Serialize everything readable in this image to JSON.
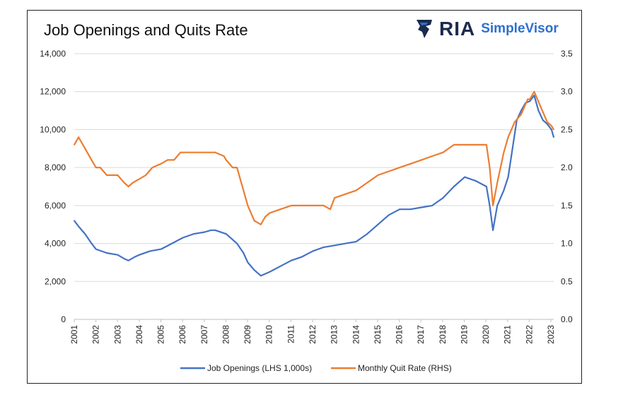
{
  "chart_data": {
    "type": "line",
    "title": "Job Openings and Quits Rate",
    "brand": {
      "mark": "RIA",
      "name": "SimpleVisor"
    },
    "x_labels": [
      "2001",
      "2002",
      "2003",
      "2004",
      "2005",
      "2006",
      "2007",
      "2008",
      "2009",
      "2010",
      "2011",
      "2012",
      "2013",
      "2014",
      "2015",
      "2016",
      "2017",
      "2018",
      "2019",
      "2020",
      "2021",
      "2022",
      "2023"
    ],
    "xlim": [
      2001.0,
      2023.1
    ],
    "y_left": {
      "ticks": [
        "0",
        "2,000",
        "4,000",
        "6,000",
        "8,000",
        "10,000",
        "12,000",
        "14,000"
      ],
      "ylim": [
        0,
        14000
      ]
    },
    "y_right": {
      "ticks": [
        "0.0",
        "0.5",
        "1.0",
        "1.5",
        "2.0",
        "2.5",
        "3.0",
        "3.5"
      ],
      "ylim": [
        0,
        3.5
      ]
    },
    "grid": true,
    "legend_position": "bottom",
    "series": [
      {
        "name": "Job Openings (LHS 1,000s)",
        "axis": "left",
        "color": "#4472C4",
        "x": [
          2001.0,
          2001.2,
          2001.5,
          2001.8,
          2002.0,
          2002.5,
          2003.0,
          2003.3,
          2003.5,
          2003.8,
          2004.0,
          2004.5,
          2005.0,
          2005.5,
          2006.0,
          2006.5,
          2007.0,
          2007.3,
          2007.5,
          2008.0,
          2008.5,
          2008.8,
          2009.0,
          2009.3,
          2009.6,
          2010.0,
          2010.5,
          2011.0,
          2011.5,
          2012.0,
          2012.5,
          2013.0,
          2013.5,
          2014.0,
          2014.5,
          2015.0,
          2015.5,
          2016.0,
          2016.5,
          2017.0,
          2017.5,
          2018.0,
          2018.5,
          2019.0,
          2019.5,
          2020.0,
          2020.15,
          2020.3,
          2020.5,
          2020.8,
          2021.0,
          2021.2,
          2021.4,
          2021.6,
          2021.8,
          2022.0,
          2022.2,
          2022.4,
          2022.6,
          2022.8,
          2023.0,
          2023.1
        ],
        "y": [
          5200,
          4900,
          4500,
          4000,
          3700,
          3500,
          3400,
          3200,
          3100,
          3300,
          3400,
          3600,
          3700,
          4000,
          4300,
          4500,
          4600,
          4700,
          4700,
          4500,
          4000,
          3500,
          3000,
          2600,
          2300,
          2500,
          2800,
          3100,
          3300,
          3600,
          3800,
          3900,
          4000,
          4100,
          4500,
          5000,
          5500,
          5800,
          5800,
          5900,
          6000,
          6400,
          7000,
          7500,
          7300,
          7000,
          6000,
          4700,
          6000,
          6800,
          7500,
          9000,
          10500,
          11000,
          11400,
          11500,
          11800,
          11000,
          10500,
          10300,
          10000,
          9600
        ]
      },
      {
        "name": "Monthly Quit Rate (RHS)",
        "axis": "right",
        "color": "#ED7D31",
        "x": [
          2001.0,
          2001.2,
          2001.4,
          2001.6,
          2001.8,
          2002.0,
          2002.2,
          2002.5,
          2002.8,
          2003.0,
          2003.3,
          2003.5,
          2003.7,
          2004.0,
          2004.3,
          2004.6,
          2005.0,
          2005.3,
          2005.6,
          2005.9,
          2006.0,
          2006.5,
          2007.0,
          2007.5,
          2007.9,
          2008.0,
          2008.3,
          2008.5,
          2008.7,
          2009.0,
          2009.3,
          2009.6,
          2009.8,
          2010.0,
          2010.5,
          2011.0,
          2011.5,
          2012.0,
          2012.5,
          2012.8,
          2013.0,
          2013.5,
          2014.0,
          2014.5,
          2015.0,
          2015.5,
          2016.0,
          2016.5,
          2017.0,
          2017.5,
          2018.0,
          2018.5,
          2019.0,
          2019.5,
          2020.0,
          2020.15,
          2020.3,
          2020.5,
          2020.8,
          2021.0,
          2021.3,
          2021.6,
          2021.9,
          2022.0,
          2022.2,
          2022.5,
          2022.8,
          2023.0,
          2023.1
        ],
        "y": [
          2.3,
          2.4,
          2.3,
          2.2,
          2.1,
          2.0,
          2.0,
          1.9,
          1.9,
          1.9,
          1.8,
          1.75,
          1.8,
          1.85,
          1.9,
          2.0,
          2.05,
          2.1,
          2.1,
          2.2,
          2.2,
          2.2,
          2.2,
          2.2,
          2.15,
          2.1,
          2.0,
          2.0,
          1.8,
          1.5,
          1.3,
          1.25,
          1.35,
          1.4,
          1.45,
          1.5,
          1.5,
          1.5,
          1.5,
          1.45,
          1.6,
          1.65,
          1.7,
          1.8,
          1.9,
          1.95,
          2.0,
          2.05,
          2.1,
          2.15,
          2.2,
          2.3,
          2.3,
          2.3,
          2.3,
          2.0,
          1.5,
          1.8,
          2.2,
          2.4,
          2.6,
          2.7,
          2.9,
          2.9,
          3.0,
          2.8,
          2.6,
          2.55,
          2.5
        ]
      }
    ]
  }
}
